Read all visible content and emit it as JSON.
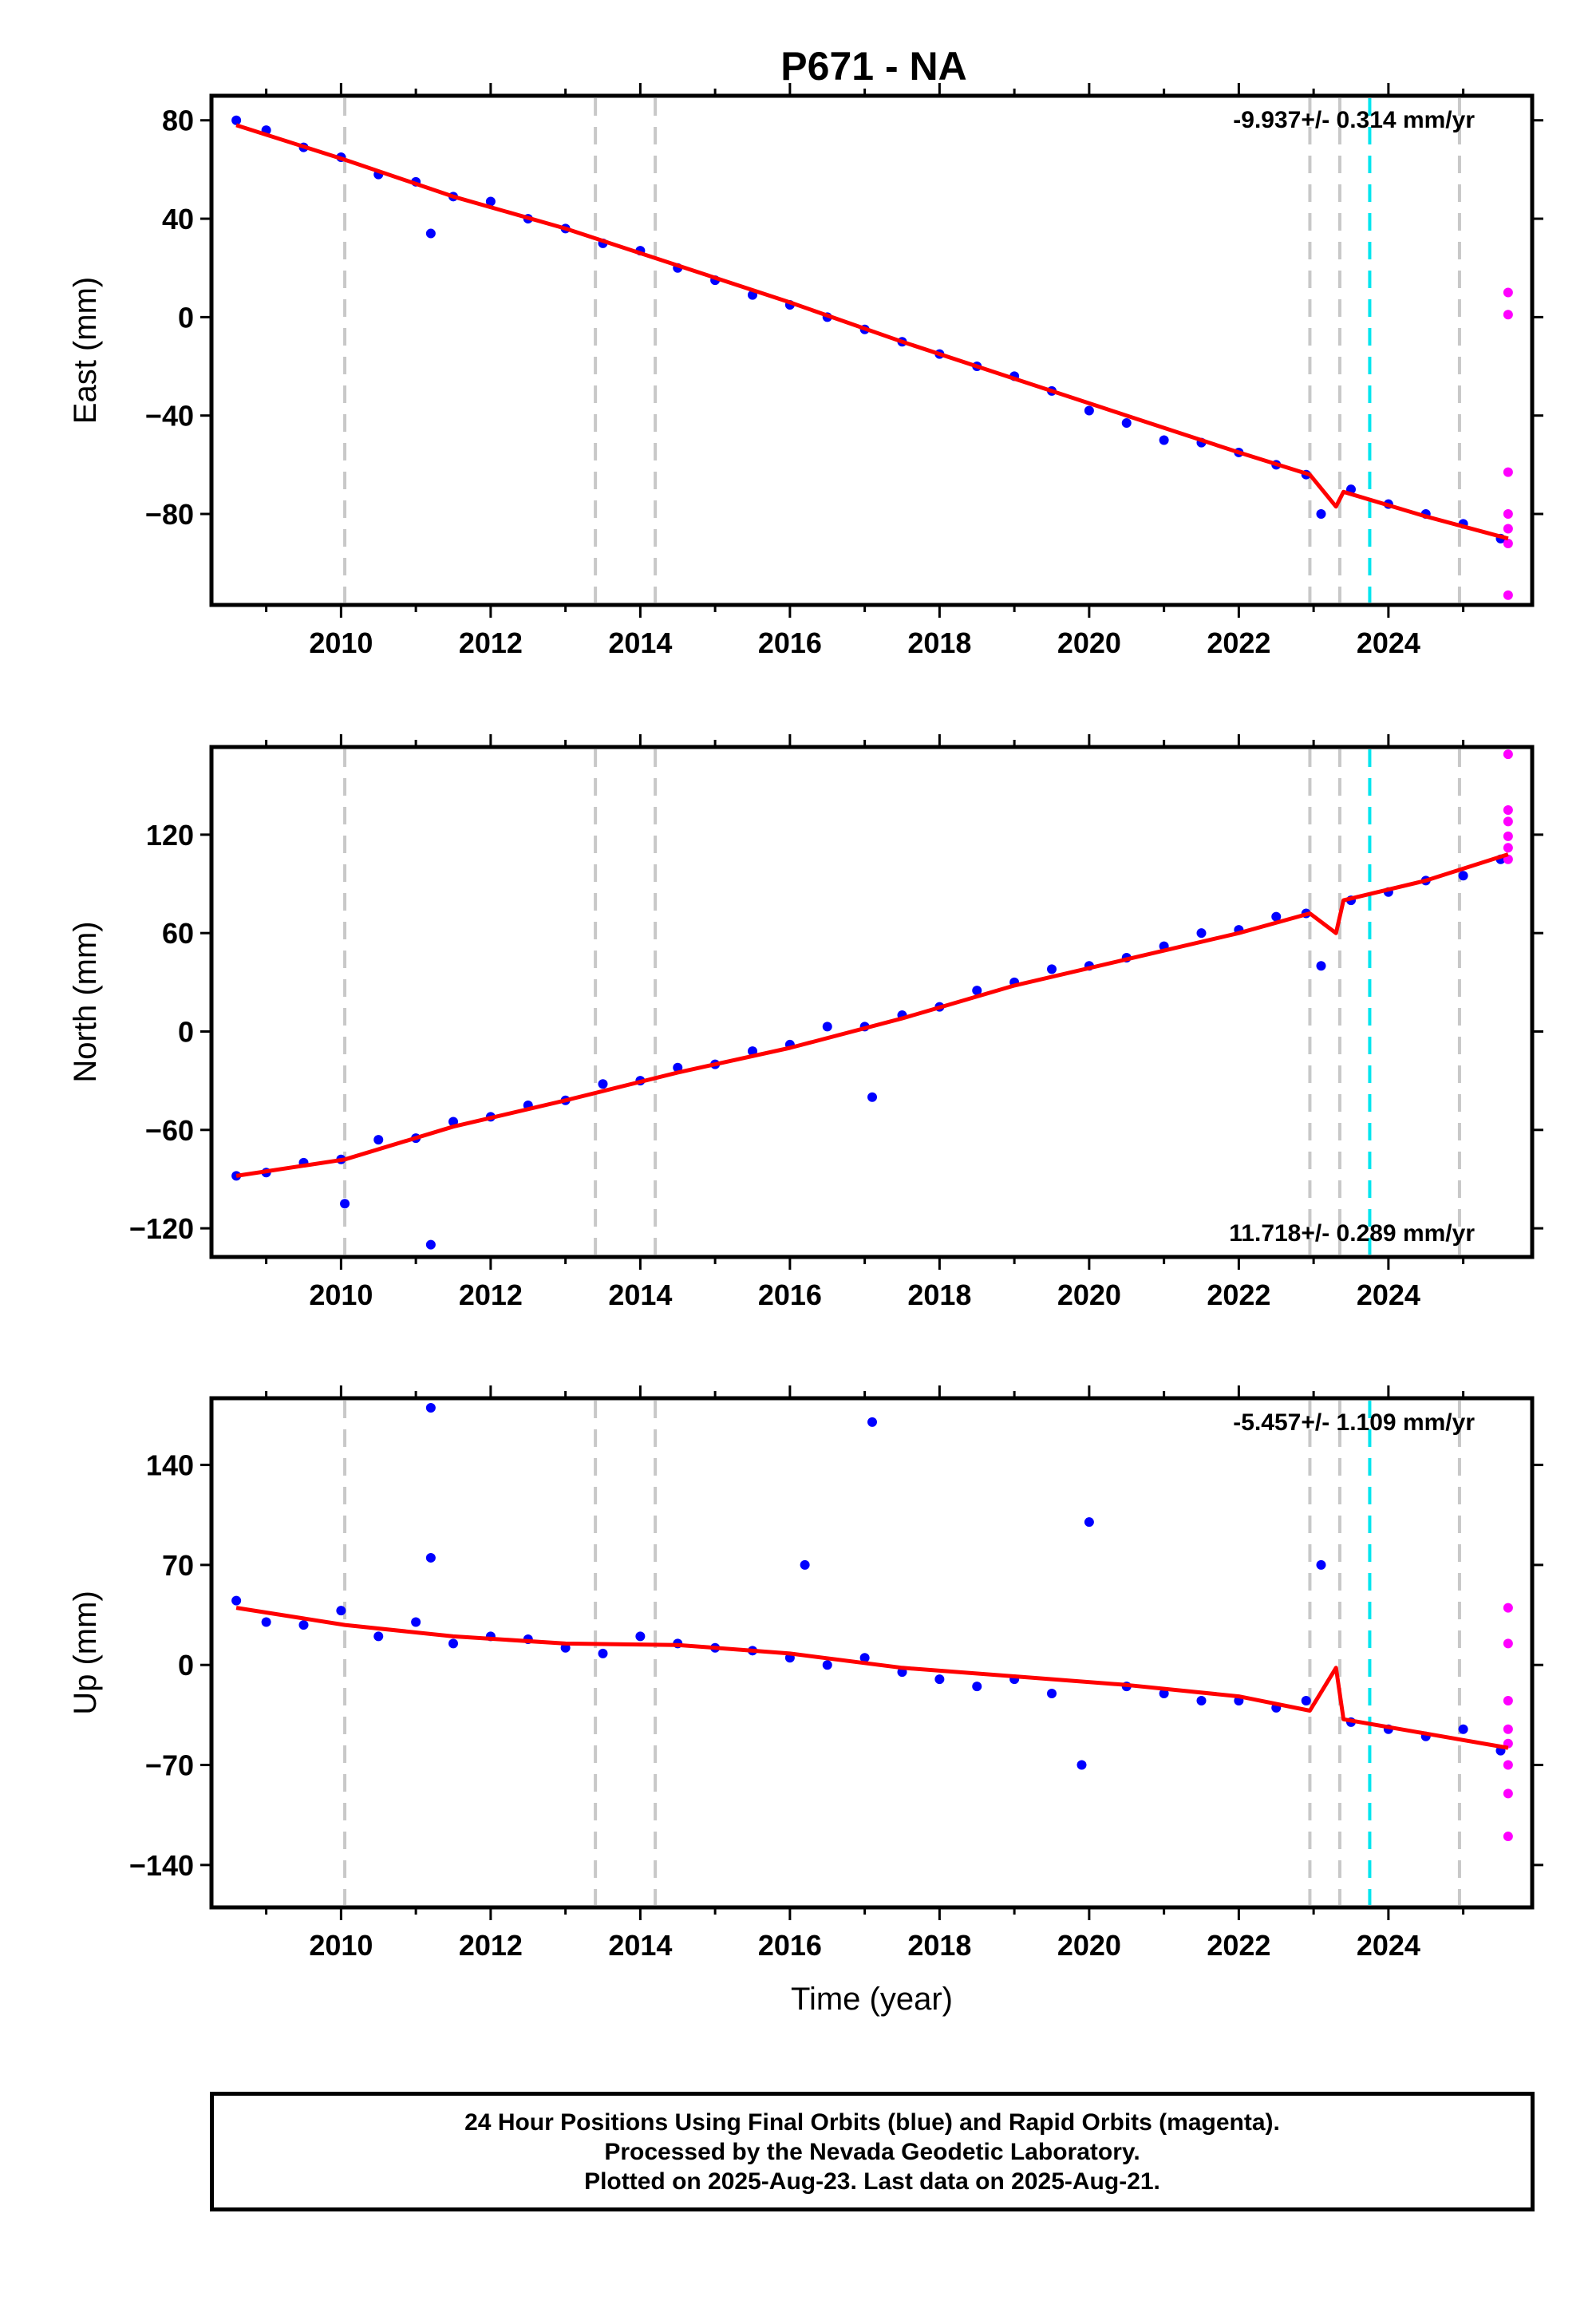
{
  "chart_data": [
    {
      "type": "scatter",
      "title": "P671 - NA",
      "ylabel": "East (mm)",
      "xlabel": "",
      "xlim": [
        2008.3,
        2025.9
      ],
      "ylim": [
        -116,
        89
      ],
      "xticks": [
        "2010",
        "2012",
        "2014",
        "2016",
        "2018",
        "2020",
        "2022",
        "2024"
      ],
      "yticks": [
        "80",
        "40",
        "0",
        "−40",
        "−80"
      ],
      "ytick_values": [
        80,
        40,
        0,
        -40,
        -80
      ],
      "rate_text": "-9.937+/- 0.314 mm/yr",
      "rate_position": "top-right",
      "grid": false,
      "event_lines_gray": [
        2010.05,
        2013.4,
        2014.2,
        2022.95,
        2023.35,
        2024.95
      ],
      "event_line_cyan": 2023.75,
      "series": [
        {
          "name": "24 hour positions (final orbits)",
          "color": "#0000ff",
          "x": [
            2008.6,
            2009.0,
            2009.5,
            2010.0,
            2010.5,
            2011.0,
            2011.2,
            2011.5,
            2012.0,
            2012.5,
            2013.0,
            2013.5,
            2014.0,
            2014.5,
            2015.0,
            2015.5,
            2016.0,
            2016.5,
            2017.0,
            2017.5,
            2018.0,
            2018.5,
            2019.0,
            2019.5,
            2020.0,
            2020.5,
            2021.0,
            2021.5,
            2022.0,
            2022.5,
            2022.9,
            2023.1,
            2023.5,
            2024.0,
            2024.5,
            2025.0,
            2025.5
          ],
          "y": [
            80,
            76,
            69,
            65,
            58,
            55,
            34,
            49,
            47,
            40,
            36,
            30,
            27,
            20,
            15,
            9,
            5,
            0,
            -5,
            -10,
            -15,
            -20,
            -24,
            -30,
            -38,
            -43,
            -50,
            -51,
            -55,
            -60,
            -64,
            -80,
            -70,
            -76,
            -80,
            -84,
            -90
          ]
        },
        {
          "name": "24 hour positions (rapid orbits)",
          "color": "#ff00ff",
          "x": [
            2025.6,
            2025.6,
            2025.6,
            2025.6,
            2025.6,
            2025.6,
            2025.6
          ],
          "y": [
            10,
            1,
            -63,
            -80,
            -86,
            -92,
            -113
          ]
        },
        {
          "name": "model fit",
          "color": "#ff0000",
          "x": [
            2008.6,
            2010.05,
            2011.5,
            2013.0,
            2014.5,
            2016.0,
            2017.5,
            2019.0,
            2020.5,
            2022.0,
            2022.95,
            2023.3,
            2023.4,
            2024.5,
            2025.6
          ],
          "y": [
            78,
            64,
            49,
            36,
            21,
            6,
            -10,
            -25,
            -40,
            -55,
            -64,
            -77,
            -71,
            -81,
            -90
          ]
        }
      ]
    },
    {
      "type": "scatter",
      "title": "",
      "ylabel": "North (mm)",
      "xlabel": "",
      "xlim": [
        2008.3,
        2025.9
      ],
      "ylim": [
        -136,
        172
      ],
      "xticks": [
        "2010",
        "2012",
        "2014",
        "2016",
        "2018",
        "2020",
        "2022",
        "2024"
      ],
      "yticks": [
        "120",
        "60",
        "0",
        "−60",
        "−120"
      ],
      "ytick_values": [
        120,
        60,
        0,
        -60,
        -120
      ],
      "rate_text": "11.718+/- 0.289 mm/yr",
      "rate_position": "bottom-right",
      "grid": false,
      "event_lines_gray": [
        2010.05,
        2013.4,
        2014.2,
        2022.95,
        2023.35,
        2024.95
      ],
      "event_line_cyan": 2023.75,
      "series": [
        {
          "name": "24 hour positions (final orbits)",
          "color": "#0000ff",
          "x": [
            2008.6,
            2009.0,
            2009.5,
            2010.0,
            2010.05,
            2010.5,
            2011.0,
            2011.2,
            2011.5,
            2012.0,
            2012.5,
            2013.0,
            2013.5,
            2014.0,
            2014.5,
            2015.0,
            2015.5,
            2016.0,
            2016.5,
            2017.0,
            2017.1,
            2017.5,
            2018.0,
            2018.5,
            2019.0,
            2019.5,
            2020.0,
            2020.5,
            2021.0,
            2021.5,
            2022.0,
            2022.5,
            2022.9,
            2023.1,
            2023.5,
            2024.0,
            2024.5,
            2025.0,
            2025.5
          ],
          "y": [
            -88,
            -86,
            -80,
            -78,
            -105,
            -66,
            -65,
            -130,
            -55,
            -52,
            -45,
            -42,
            -32,
            -30,
            -22,
            -20,
            -12,
            -8,
            3,
            3,
            -40,
            10,
            15,
            25,
            30,
            38,
            40,
            45,
            52,
            60,
            62,
            70,
            72,
            40,
            80,
            85,
            92,
            95,
            105
          ]
        },
        {
          "name": "24 hour positions (rapid orbits)",
          "color": "#ff00ff",
          "x": [
            2025.6,
            2025.6,
            2025.6,
            2025.6,
            2025.6,
            2025.6
          ],
          "y": [
            169,
            135,
            128,
            119,
            112,
            105
          ]
        },
        {
          "name": "model fit",
          "color": "#ff0000",
          "x": [
            2008.6,
            2010.05,
            2011.5,
            2013.0,
            2014.5,
            2016.0,
            2017.5,
            2019.0,
            2020.5,
            2022.0,
            2022.95,
            2023.3,
            2023.4,
            2024.5,
            2025.6
          ],
          "y": [
            -88,
            -78,
            -58,
            -42,
            -25,
            -10,
            8,
            28,
            44,
            60,
            72,
            60,
            80,
            92,
            108
          ]
        }
      ]
    },
    {
      "type": "scatter",
      "title": "",
      "ylabel": "Up (mm)",
      "xlabel": "Time (year)",
      "xlim": [
        2008.3,
        2025.9
      ],
      "ylim": [
        -168,
        185
      ],
      "xticks": [
        "2010",
        "2012",
        "2014",
        "2016",
        "2018",
        "2020",
        "2022",
        "2024"
      ],
      "yticks": [
        "140",
        "70",
        "0",
        "−70",
        "−140"
      ],
      "ytick_values": [
        140,
        70,
        0,
        -70,
        -140
      ],
      "rate_text": "-5.457+/- 1.109 mm/yr",
      "rate_position": "top-right",
      "grid": false,
      "event_lines_gray": [
        2010.05,
        2013.4,
        2014.2,
        2022.95,
        2023.35,
        2024.95
      ],
      "event_line_cyan": 2023.75,
      "series": [
        {
          "name": "24 hour positions (final orbits)",
          "color": "#0000ff",
          "x": [
            2008.6,
            2009.0,
            2009.5,
            2010.0,
            2010.5,
            2011.0,
            2011.2,
            2011.2,
            2011.5,
            2012.0,
            2012.5,
            2013.0,
            2013.5,
            2014.0,
            2014.5,
            2015.0,
            2015.5,
            2016.0,
            2016.2,
            2016.5,
            2017.0,
            2017.1,
            2017.5,
            2018.0,
            2018.5,
            2019.0,
            2019.5,
            2019.9,
            2020.0,
            2020.5,
            2021.0,
            2021.5,
            2022.0,
            2022.5,
            2022.9,
            2023.1,
            2023.5,
            2024.0,
            2024.5,
            2025.0,
            2025.5
          ],
          "y": [
            45,
            30,
            28,
            38,
            20,
            30,
            180,
            75,
            15,
            20,
            18,
            12,
            8,
            20,
            15,
            12,
            10,
            5,
            70,
            0,
            5,
            170,
            -5,
            -10,
            -15,
            -10,
            -20,
            -70,
            100,
            -15,
            -20,
            -25,
            -25,
            -30,
            -25,
            70,
            -40,
            -45,
            -50,
            -45,
            -60
          ]
        },
        {
          "name": "24 hour positions (rapid orbits)",
          "color": "#ff00ff",
          "x": [
            2025.6,
            2025.6,
            2025.6,
            2025.6,
            2025.6,
            2025.6,
            2025.6,
            2025.6
          ],
          "y": [
            40,
            15,
            -25,
            -45,
            -55,
            -70,
            -90,
            -120
          ]
        },
        {
          "name": "model fit",
          "color": "#ff0000",
          "x": [
            2008.6,
            2010.05,
            2011.5,
            2013.0,
            2014.5,
            2016.0,
            2017.5,
            2019.0,
            2020.5,
            2022.0,
            2022.95,
            2023.3,
            2023.4,
            2024.5,
            2025.6
          ],
          "y": [
            40,
            28,
            20,
            15,
            14,
            8,
            -2,
            -8,
            -14,
            -22,
            -32,
            -2,
            -38,
            -48,
            -58
          ]
        }
      ]
    }
  ],
  "footer": {
    "line1": "24 Hour Positions Using Final Orbits (blue) and Rapid Orbits (magenta).",
    "line2": "Processed by the Nevada Geodetic Laboratory.",
    "line3": "Plotted on 2025-Aug-23. Last data on 2025-Aug-21."
  },
  "colors": {
    "final_orbits": "#0000ff",
    "rapid_orbits": "#ff00ff",
    "model_fit": "#ff0000",
    "event_line": "#c8c8c8",
    "highlight_event": "#00e5ee"
  }
}
